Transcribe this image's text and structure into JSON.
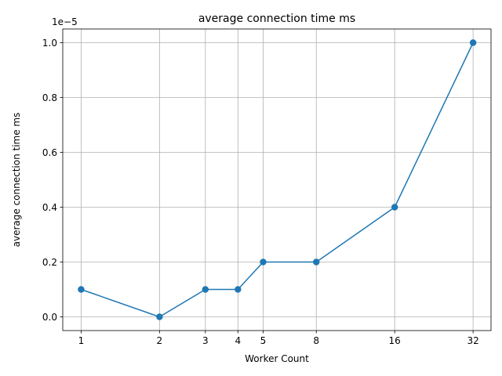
{
  "chart_data": {
    "type": "line",
    "title": "average connection time ms",
    "xlabel": "Worker Count",
    "ylabel": "average connection time ms",
    "x_scale": "log2",
    "y_offset_label": "1e−5",
    "x_ticks": [
      1,
      2,
      3,
      4,
      5,
      8,
      16,
      32
    ],
    "y_ticks": [
      0.0,
      0.2,
      0.4,
      0.6,
      0.8,
      1.0
    ],
    "y_tick_labels": [
      "0.0",
      "0.2",
      "0.4",
      "0.6",
      "0.8",
      "1.0"
    ],
    "xlim": [
      0.85,
      37.5
    ],
    "ylim": [
      -0.05,
      1.05
    ],
    "grid": true,
    "series": [
      {
        "color": "#1f77b4",
        "marker": "circle",
        "x": [
          1,
          2,
          3,
          4,
          5,
          8,
          16,
          32
        ],
        "y": [
          0.1,
          0.0,
          0.1,
          0.1,
          0.2,
          0.2,
          0.4,
          1.0
        ]
      }
    ]
  }
}
